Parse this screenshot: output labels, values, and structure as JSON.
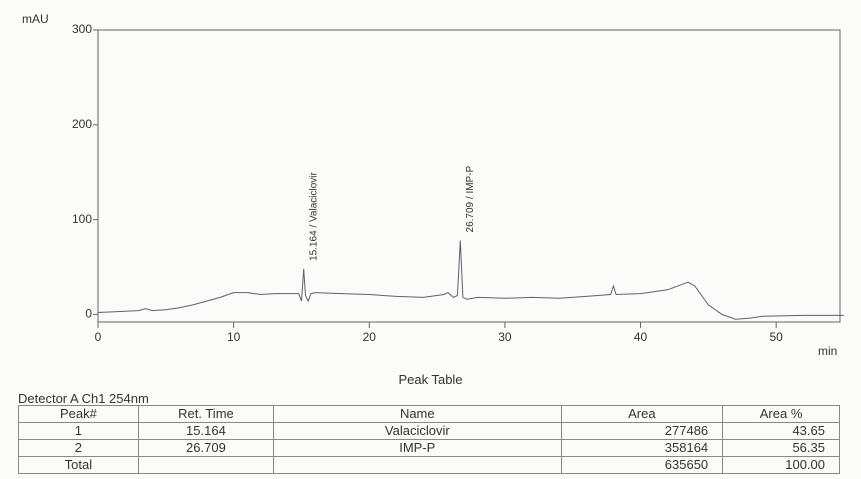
{
  "chart_data": {
    "type": "line",
    "y_label": "mAU",
    "x_label": "min",
    "x": [
      0,
      3,
      3.5,
      4,
      5,
      6,
      7,
      8,
      9,
      10,
      11,
      12,
      13,
      14,
      14.8,
      15.0,
      15.164,
      15.3,
      15.5,
      15.7,
      16,
      18,
      20,
      22,
      24,
      25.5,
      25.8,
      26.2,
      26.5,
      26.709,
      26.9,
      27.2,
      28,
      30,
      32,
      34,
      36,
      37.8,
      38.0,
      38.2,
      40,
      42,
      43.5,
      44,
      45,
      46,
      47,
      48,
      49,
      52,
      55
    ],
    "values": [
      2,
      4,
      6,
      4,
      5,
      7,
      10,
      14,
      18,
      23,
      23,
      21,
      22,
      22,
      22,
      14,
      48,
      20,
      14,
      22,
      23,
      22,
      21,
      19,
      18,
      21,
      23,
      18,
      20,
      78,
      18,
      16,
      18,
      17,
      18,
      17,
      19,
      21,
      30,
      21,
      22,
      26,
      34,
      30,
      10,
      0,
      -5,
      -4,
      -2,
      -1,
      -1
    ],
    "color": "#5a6270",
    "xlim": [
      0,
      55
    ],
    "ylim": [
      -8,
      300
    ],
    "xticks": [
      0,
      10,
      20,
      30,
      40,
      50
    ],
    "yticks": [
      0,
      100,
      200,
      300
    ],
    "annotations": [
      {
        "text": "15.164 / Valaciclovir",
        "x": 15.164
      },
      {
        "text": "26.709 / IMP-P",
        "x": 26.709
      }
    ]
  },
  "table": {
    "title": "Peak Table",
    "detector": "Detector A Ch1 254nm",
    "headers": [
      "Peak#",
      "Ret. Time",
      "Name",
      "Area",
      "Area %"
    ],
    "rows": [
      [
        "1",
        "15.164",
        "Valaciclovir",
        "277486",
        "43.65"
      ],
      [
        "2",
        "26.709",
        "IMP-P",
        "358164",
        "56.35"
      ],
      [
        "Total",
        "",
        "",
        "635650",
        "100.00"
      ]
    ]
  }
}
